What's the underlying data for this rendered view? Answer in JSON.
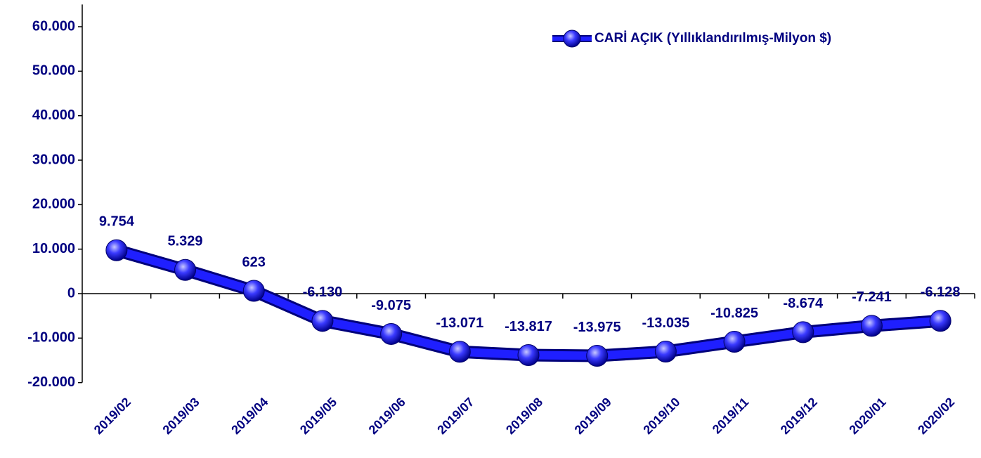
{
  "chart_data": {
    "type": "line",
    "categories": [
      "2019/02",
      "2019/03",
      "2019/04",
      "2019/05",
      "2019/06",
      "2019/07",
      "2019/08",
      "2019/09",
      "2019/10",
      "2019/11",
      "2019/12",
      "2020/01",
      "2020/02"
    ],
    "series": [
      {
        "name": "CARİ AÇIK (Yıllıklandırılmış-Milyon $)",
        "color": "#1f1fff",
        "values": [
          9754,
          5329,
          623,
          -6130,
          -9075,
          -13071,
          -13817,
          -13975,
          -13035,
          -10825,
          -8674,
          -7241,
          -6128
        ],
        "value_labels": [
          "9.754",
          "5.329",
          "623",
          "-6.130",
          "-9.075",
          "-13.071",
          "-13.817",
          "-13.975",
          "-13.035",
          "-10.825",
          "-8.674",
          "-7.241",
          "-6.128"
        ]
      }
    ],
    "ylim": [
      -20000,
      65000
    ],
    "yticks": [
      {
        "value": -20000,
        "label": "-20.000"
      },
      {
        "value": -10000,
        "label": "-10.000"
      },
      0,
      {
        "value": 10000,
        "label": "10.000"
      },
      {
        "value": 20000,
        "label": "20.000"
      },
      {
        "value": 30000,
        "label": "30.000"
      },
      {
        "value": 40000,
        "label": "40.000"
      },
      {
        "value": 50000,
        "label": "50.000"
      },
      {
        "value": 60000,
        "label": "60.000"
      }
    ],
    "legend": "top-right"
  }
}
